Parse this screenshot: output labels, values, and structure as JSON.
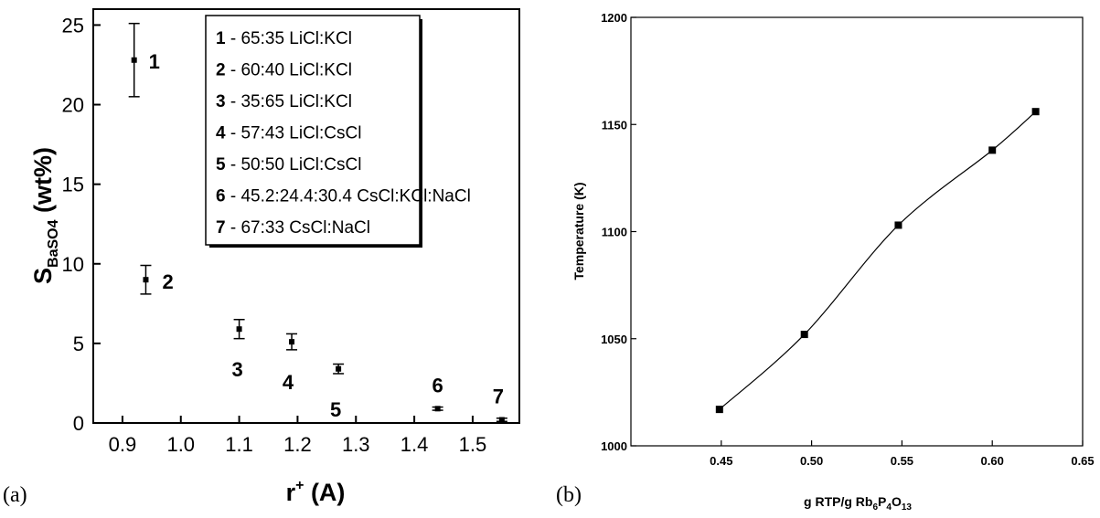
{
  "chart_data": [
    {
      "type": "scatter",
      "panel_label": "(a)",
      "title": "",
      "xlabel": "r",
      "xlabel_sup": "+",
      "xlabel_unit": " (A)",
      "ylabel": "S",
      "ylabel_sub": "BaSO4",
      "ylabel_unit": " (wt%)",
      "xlim": [
        0.85,
        1.58
      ],
      "ylim": [
        0,
        26
      ],
      "x_ticks": [
        0.9,
        1.0,
        1.1,
        1.2,
        1.3,
        1.4,
        1.5
      ],
      "x_tick_labels": [
        "0.9",
        "1.0",
        "1.1",
        "1.2",
        "1.3",
        "1.4",
        "1.5"
      ],
      "y_ticks": [
        0,
        5,
        10,
        15,
        20,
        25
      ],
      "y_tick_labels": [
        "0",
        "5",
        "10",
        "15",
        "20",
        "25"
      ],
      "grid": false,
      "legend_position": "top-right",
      "points": [
        {
          "label": "1",
          "x": 0.92,
          "y": 22.8,
          "err": 2.3
        },
        {
          "label": "2",
          "x": 0.94,
          "y": 9.0,
          "err": 0.9
        },
        {
          "label": "3",
          "x": 1.1,
          "y": 5.9,
          "err": 0.6
        },
        {
          "label": "4",
          "x": 1.19,
          "y": 5.1,
          "err": 0.5
        },
        {
          "label": "5",
          "x": 1.27,
          "y": 3.4,
          "err": 0.3
        },
        {
          "label": "6",
          "x": 1.44,
          "y": 0.9,
          "err": 0.1
        },
        {
          "label": "7",
          "x": 1.55,
          "y": 0.2,
          "err": 0.1
        }
      ],
      "legend": [
        {
          "num": "1",
          "text": " - 65:35 LiCl:KCl"
        },
        {
          "num": "2",
          "text": " - 60:40 LiCl:KCl"
        },
        {
          "num": "3",
          "text": " - 35:65 LiCl:KCl"
        },
        {
          "num": "4",
          "text": " - 57:43 LiCl:CsCl"
        },
        {
          "num": "5",
          "text": " - 50:50 LiCl:CsCl"
        },
        {
          "num": "6",
          "text": " - 45.2:24.4:30.4 CsCl:KCl:NaCl"
        },
        {
          "num": "7",
          "text": " - 67:33 CsCl:NaCl"
        }
      ]
    },
    {
      "type": "line",
      "panel_label": "(b)",
      "title": "",
      "xlabel": "g RTP/g Rb",
      "xlabel_sub1": "6",
      "xlabel_mid": "P",
      "xlabel_sub2": "4",
      "xlabel_end": "O",
      "xlabel_sub3": "13",
      "ylabel": "Temperature (K)",
      "xlim": [
        0.4,
        0.65
      ],
      "ylim": [
        1000,
        1200
      ],
      "x_ticks": [
        0.45,
        0.5,
        0.55,
        0.6,
        0.65
      ],
      "x_tick_labels": [
        "0.45",
        "0.50",
        "0.55",
        "0.60",
        "0.65"
      ],
      "y_ticks": [
        1000,
        1050,
        1100,
        1150,
        1200
      ],
      "y_tick_labels": [
        "1000",
        "1050",
        "1100",
        "1150",
        "1200"
      ],
      "grid": false,
      "points": [
        {
          "x": 0.449,
          "y": 1017
        },
        {
          "x": 0.496,
          "y": 1052
        },
        {
          "x": 0.548,
          "y": 1103
        },
        {
          "x": 0.6,
          "y": 1138
        },
        {
          "x": 0.624,
          "y": 1156
        }
      ]
    }
  ]
}
